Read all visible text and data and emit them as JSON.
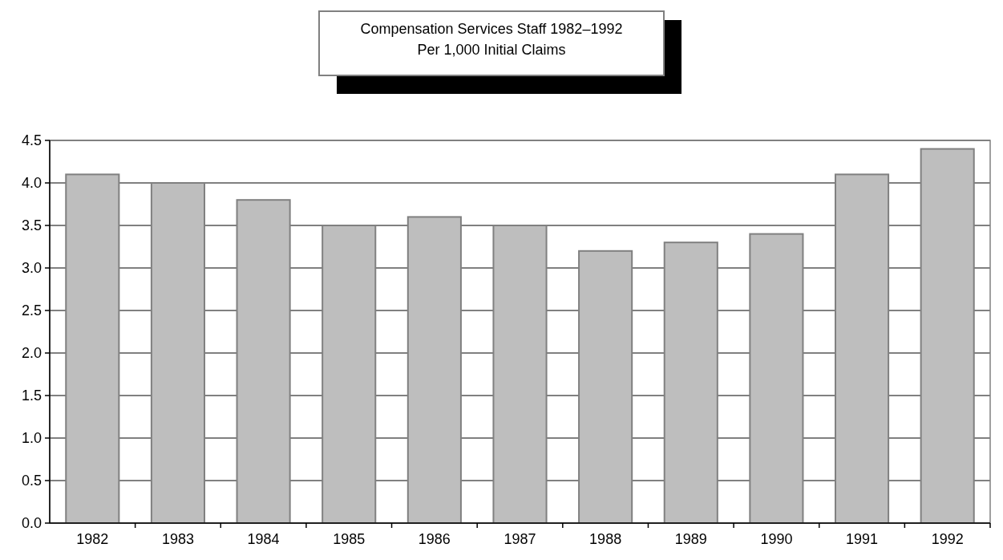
{
  "chart_data": {
    "type": "bar",
    "title": "Compensation Services Staff 1982–1992",
    "subtitle": "Per 1,000 Initial Claims",
    "categories": [
      "1982",
      "1983",
      "1984",
      "1985",
      "1986",
      "1987",
      "1988",
      "1989",
      "1990",
      "1991",
      "1992"
    ],
    "values": [
      4.1,
      4.0,
      3.8,
      3.5,
      3.6,
      3.5,
      3.2,
      3.3,
      3.4,
      4.1,
      4.4
    ],
    "color": "#bebebe",
    "ylim": [
      0,
      4.5
    ],
    "yticks": [
      {
        "value": 0,
        "label": "0.0"
      },
      {
        "value": 0.5,
        "label": "0.5"
      },
      {
        "value": 1,
        "label": "1.0"
      },
      {
        "value": 1.5,
        "label": "1.5"
      },
      {
        "value": 2,
        "label": "2.0"
      },
      {
        "value": 2.5,
        "label": "2.5"
      },
      {
        "value": 3,
        "label": "3.0"
      },
      {
        "value": 3.5,
        "label": "3.5"
      },
      {
        "value": 4,
        "label": "4.0"
      },
      {
        "value": 4.5,
        "label": "4.5"
      }
    ],
    "grid": "y"
  }
}
